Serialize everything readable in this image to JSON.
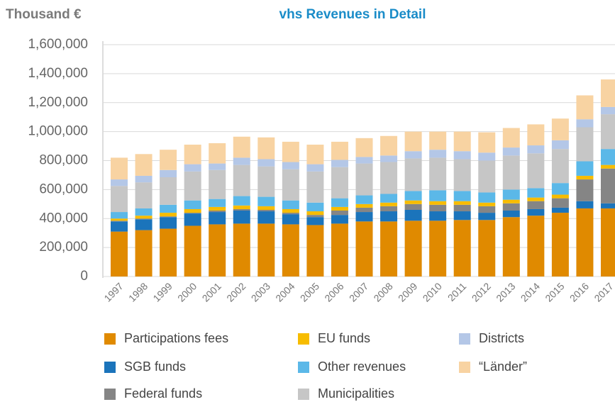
{
  "chart_data": {
    "type": "stacked-bar",
    "y_title": "Thousand €",
    "title": "vhs Revenues in Detail",
    "categories": [
      "1997",
      "1998",
      "1999",
      "2000",
      "2001",
      "2002",
      "2003",
      "2004",
      "2005",
      "2006",
      "2007",
      "2008",
      "2009",
      "2010",
      "2011",
      "2012",
      "2013",
      "2014",
      "2015",
      "2016",
      "2017"
    ],
    "series": [
      {
        "name": "Participations fees",
        "color": "#e08a00",
        "values": [
          310000,
          320000,
          330000,
          350000,
          360000,
          365000,
          365000,
          360000,
          355000,
          365000,
          380000,
          380000,
          385000,
          385000,
          390000,
          390000,
          410000,
          420000,
          440000,
          470000,
          470000
        ]
      },
      {
        "name": "SGB funds",
        "color": "#1b74bb",
        "values": [
          70000,
          75000,
          80000,
          85000,
          85000,
          90000,
          85000,
          70000,
          55000,
          60000,
          65000,
          70000,
          75000,
          65000,
          60000,
          50000,
          45000,
          45000,
          35000,
          50000,
          35000
        ]
      },
      {
        "name": "Federal funds",
        "color": "#858585",
        "values": [
          5000,
          5000,
          5000,
          5000,
          10000,
          10000,
          10000,
          10000,
          15000,
          30000,
          30000,
          35000,
          40000,
          45000,
          45000,
          45000,
          50000,
          55000,
          65000,
          150000,
          240000
        ]
      },
      {
        "name": "EU funds",
        "color": "#f7bc00",
        "values": [
          15000,
          20000,
          25000,
          25000,
          25000,
          25000,
          25000,
          25000,
          25000,
          25000,
          25000,
          25000,
          25000,
          25000,
          25000,
          25000,
          25000,
          25000,
          25000,
          25000,
          25000
        ]
      },
      {
        "name": "Other revenues",
        "color": "#5bb8e8",
        "values": [
          45000,
          50000,
          55000,
          60000,
          55000,
          65000,
          65000,
          60000,
          60000,
          60000,
          60000,
          60000,
          65000,
          75000,
          70000,
          70000,
          70000,
          65000,
          80000,
          100000,
          110000
        ]
      },
      {
        "name": "Municipalities",
        "color": "#c6c6c6",
        "values": [
          180000,
          180000,
          190000,
          200000,
          200000,
          215000,
          210000,
          215000,
          215000,
          215000,
          220000,
          220000,
          225000,
          225000,
          220000,
          220000,
          235000,
          240000,
          235000,
          235000,
          240000
        ]
      },
      {
        "name": "Districts",
        "color": "#b4c7e7",
        "values": [
          45000,
          45000,
          50000,
          50000,
          45000,
          50000,
          50000,
          50000,
          50000,
          50000,
          45000,
          45000,
          50000,
          55000,
          55000,
          55000,
          55000,
          55000,
          60000,
          55000,
          50000
        ]
      },
      {
        "name": "“Länder”",
        "color": "#f8d3a2",
        "values": [
          150000,
          150000,
          140000,
          135000,
          140000,
          145000,
          150000,
          140000,
          135000,
          125000,
          130000,
          135000,
          135000,
          125000,
          135000,
          140000,
          135000,
          145000,
          150000,
          165000,
          190000
        ]
      }
    ],
    "ylim": [
      0,
      1600000
    ],
    "yticks": [
      0,
      {
        "value": 200000,
        "label": "200,000"
      },
      {
        "value": 400000,
        "label": "400,000"
      },
      {
        "value": 600000,
        "label": "600,000"
      },
      {
        "value": 800000,
        "label": "800,000"
      },
      {
        "value": 1000000,
        "label": "1,000,000"
      },
      {
        "value": 1200000,
        "label": "1,200,000"
      },
      {
        "value": 1400000,
        "label": "1,400,000"
      },
      {
        "value": 1600000,
        "label": "1,600,000"
      }
    ],
    "grid": true
  }
}
